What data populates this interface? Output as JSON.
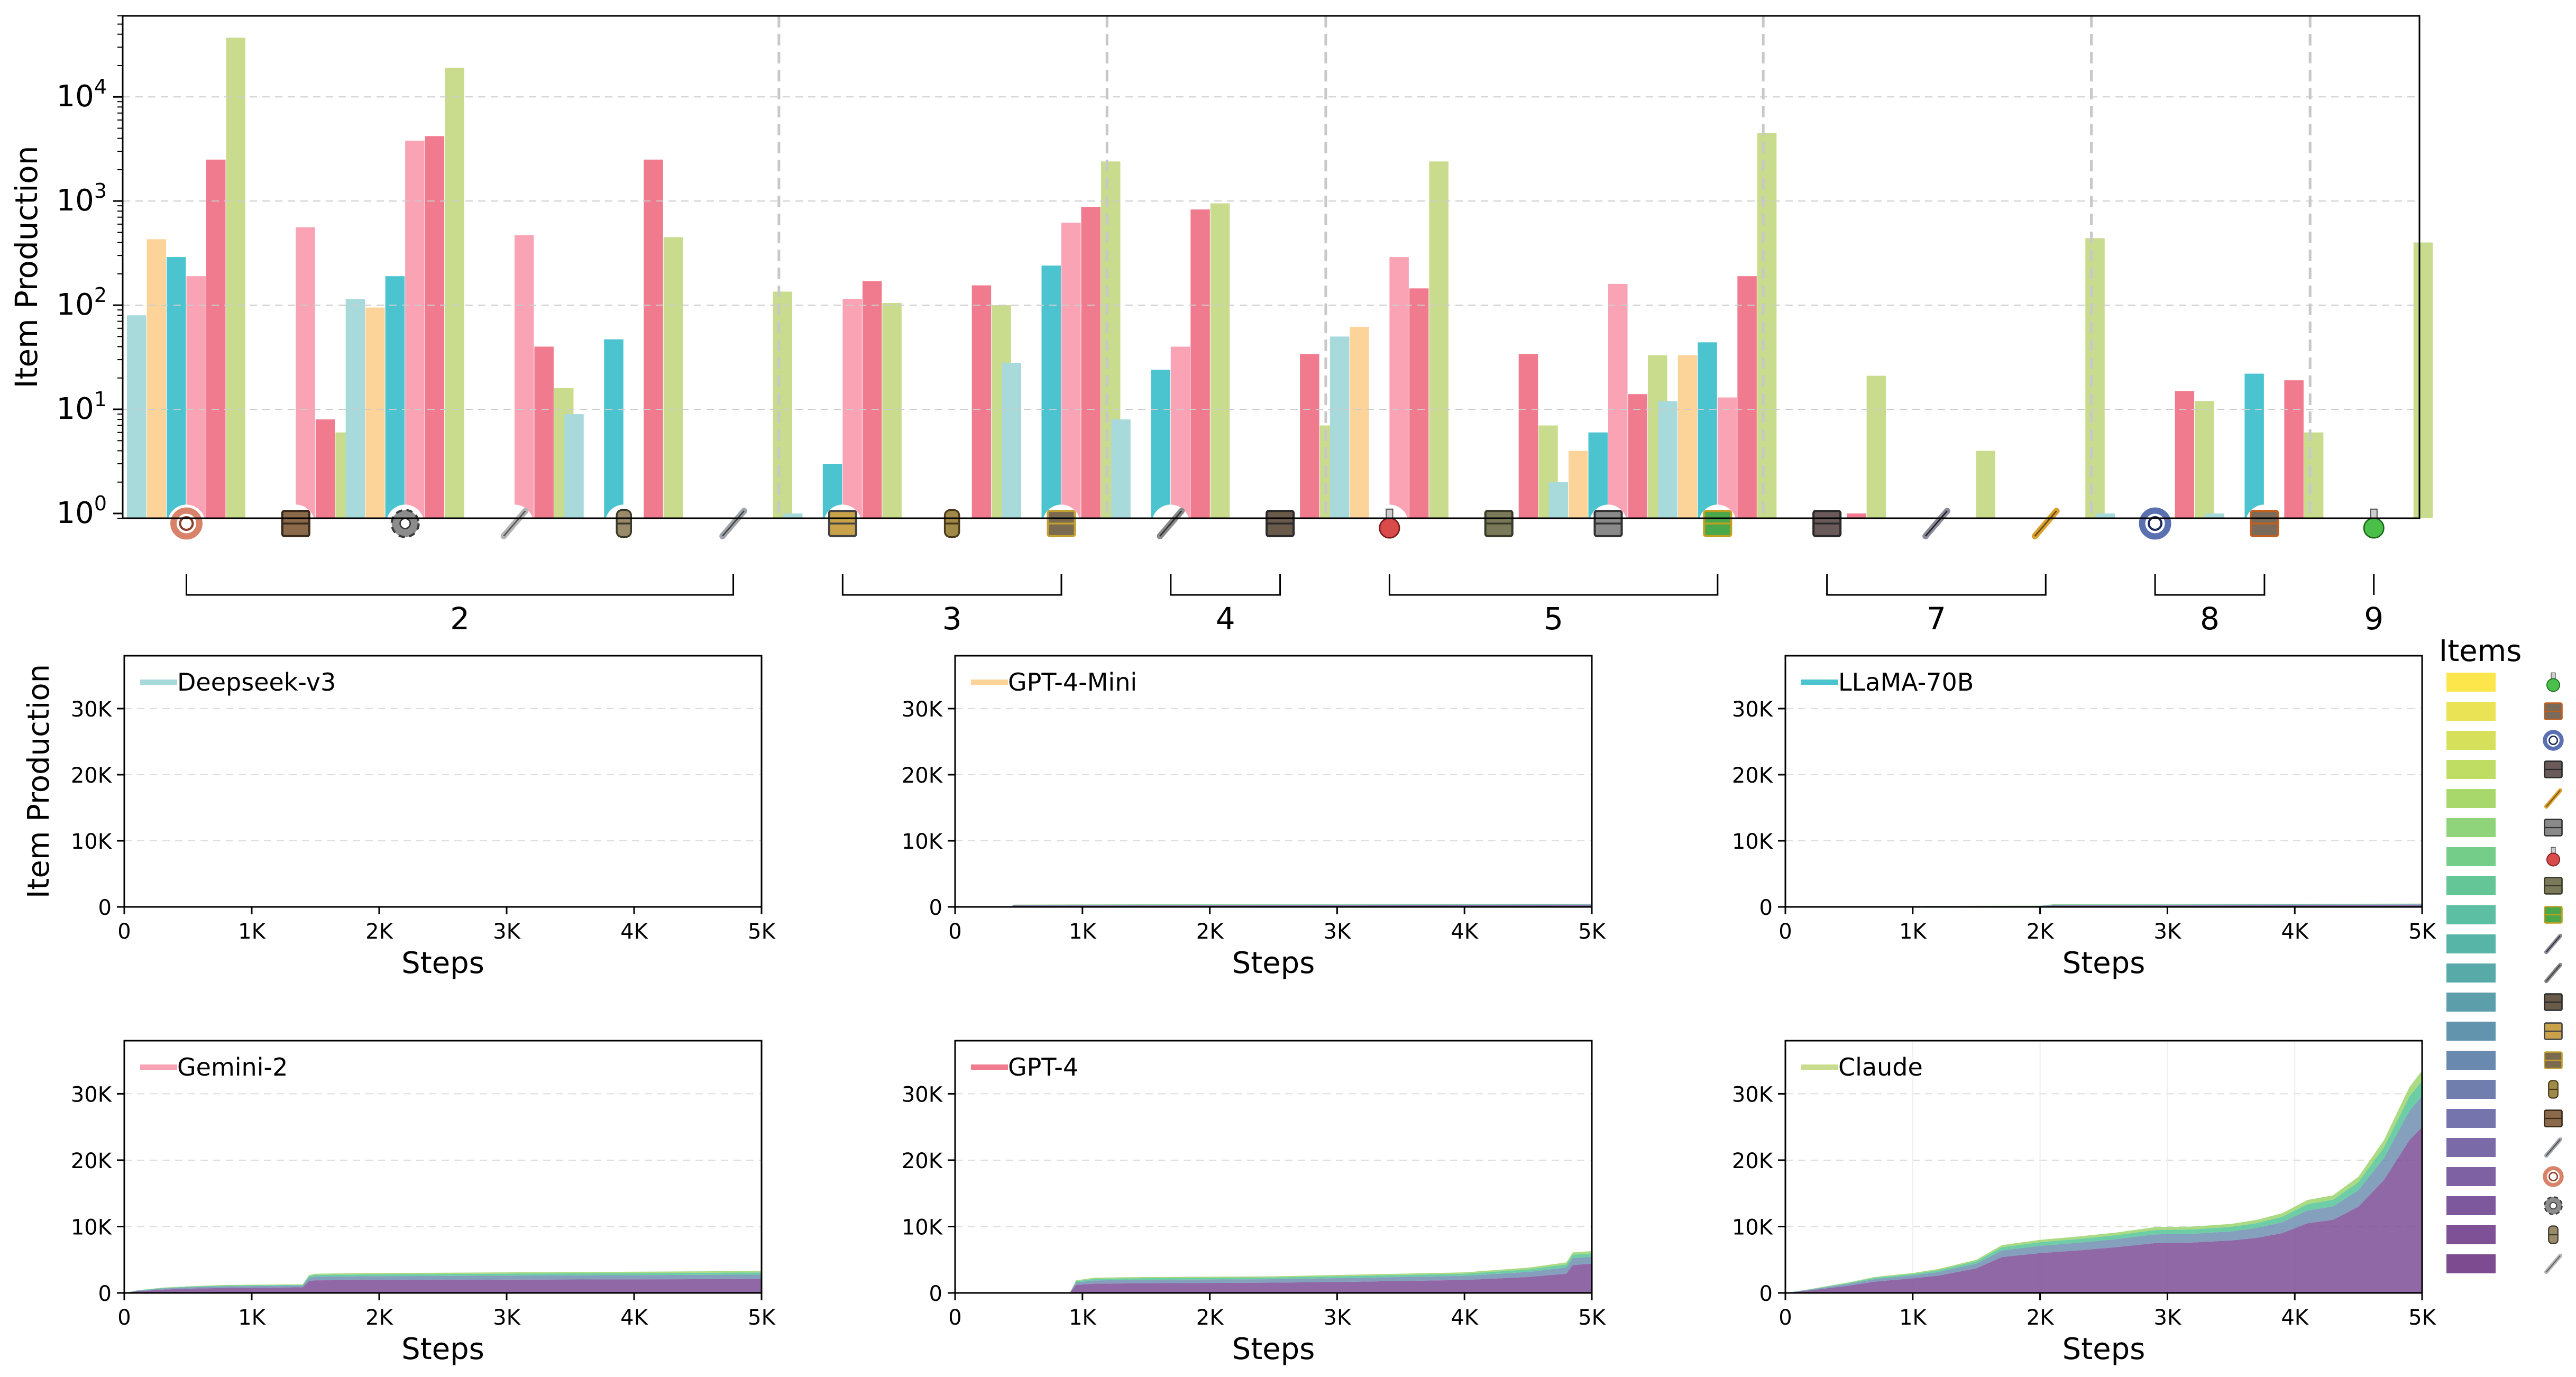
{
  "colors": {
    "Deepseek-v3": "#a8dadc",
    "GPT-4-Mini": "#fcd49a",
    "LLaMA-70B": "#4cc4d0",
    "Gemini-2": "#f9a3b5",
    "GPT-4": "#f07a8e",
    "Claude": "#c9db8d"
  },
  "chart_data": [
    {
      "type": "bar",
      "title": "",
      "ylabel": "Item Production",
      "yscale": "log",
      "ylim": [
        0.9,
        60000
      ],
      "ytick_labels": [
        "10^0",
        "10^1",
        "10^2",
        "10^3",
        "10^4"
      ],
      "categories": [
        "copper-cable",
        "wooden-chest",
        "iron-gear-wheel",
        "iron-stick",
        "pipe",
        "steel-plate",
        "transport-belt",
        "firearm-magazine",
        "electric-mining-drill",
        "pipe-to-ground",
        "burner-mining-drill",
        "automation-science-pack",
        "stone-furnace",
        "assembling-machine-1",
        "electronic-circuit",
        "lab",
        "inserter",
        "fast-inserter",
        "rocket-fuel",
        "gun-turret",
        "logistic-science-pack"
      ],
      "series": [
        {
          "name": "Deepseek-v3",
          "values": [
            80,
            null,
            115,
            null,
            9,
            null,
            1,
            null,
            28,
            8,
            null,
            50,
            null,
            2,
            12,
            null,
            null,
            null,
            1,
            1,
            null
          ]
        },
        {
          "name": "GPT-4-Mini",
          "values": [
            430,
            null,
            95,
            null,
            null,
            null,
            null,
            null,
            null,
            null,
            null,
            62,
            null,
            4,
            33,
            null,
            null,
            null,
            null,
            null,
            null
          ]
        },
        {
          "name": "LLaMA-70B",
          "values": [
            290,
            null,
            190,
            null,
            47,
            null,
            3,
            null,
            240,
            24,
            null,
            null,
            null,
            6,
            44,
            null,
            null,
            null,
            null,
            22,
            null
          ]
        },
        {
          "name": "Gemini-2",
          "values": [
            190,
            560,
            3800,
            470,
            null,
            null,
            115,
            null,
            620,
            40,
            null,
            290,
            null,
            160,
            13,
            null,
            null,
            null,
            null,
            null,
            null
          ]
        },
        {
          "name": "GPT-4",
          "values": [
            2500,
            8,
            4200,
            40,
            2500,
            null,
            170,
            155,
            880,
            830,
            34,
            145,
            34,
            14,
            190,
            1,
            null,
            null,
            15,
            19,
            null
          ]
        },
        {
          "name": "Claude",
          "values": [
            37000,
            6,
            19000,
            16,
            450,
            135,
            105,
            100,
            2400,
            950,
            7,
            2400,
            7,
            33,
            4500,
            21,
            4,
            440,
            12,
            6,
            400
          ]
        }
      ],
      "groups": [
        {
          "label": "2",
          "items": [
            "copper-cable",
            "wooden-chest",
            "iron-gear-wheel",
            "iron-stick",
            "pipe",
            "steel-plate"
          ]
        },
        {
          "label": "3",
          "items": [
            "transport-belt",
            "firearm-magazine",
            "electric-mining-drill"
          ]
        },
        {
          "label": "4",
          "items": [
            "pipe-to-ground",
            "burner-mining-drill"
          ]
        },
        {
          "label": "5",
          "items": [
            "automation-science-pack",
            "stone-furnace",
            "assembling-machine-1",
            "electronic-circuit"
          ]
        },
        {
          "label": "7",
          "items": [
            "lab",
            "inserter",
            "fast-inserter"
          ]
        },
        {
          "label": "8",
          "items": [
            "rocket-fuel",
            "gun-turret"
          ]
        },
        {
          "label": "9",
          "items": [
            "logistic-science-pack"
          ]
        }
      ]
    },
    {
      "type": "area",
      "panels": [
        {
          "model": "Deepseek-v3",
          "x": [
            0,
            1000,
            1300,
            2000,
            3000,
            4000,
            5000
          ],
          "total": [
            0,
            0,
            80,
            90,
            110,
            120,
            130
          ],
          "base": [
            0,
            0,
            40,
            45,
            55,
            60,
            65
          ]
        },
        {
          "model": "GPT-4-Mini",
          "x": [
            0,
            430,
            460,
            1000,
            2000,
            3000,
            4000,
            5000
          ],
          "total": [
            0,
            0,
            350,
            380,
            400,
            420,
            440,
            460
          ],
          "base": [
            0,
            0,
            200,
            210,
            220,
            230,
            240,
            250
          ]
        },
        {
          "model": "LLaMA-70B",
          "x": [
            0,
            1000,
            1100,
            2000,
            2100,
            3000,
            4000,
            5000
          ],
          "total": [
            0,
            0,
            150,
            200,
            400,
            430,
            460,
            500
          ],
          "base": [
            0,
            0,
            80,
            100,
            200,
            220,
            240,
            260
          ]
        },
        {
          "model": "Gemini-2",
          "x": [
            0,
            100,
            300,
            500,
            800,
            1100,
            1400,
            1450,
            1500,
            2000,
            3000,
            4000,
            5000
          ],
          "total": [
            0,
            400,
            800,
            1000,
            1200,
            1250,
            1300,
            2700,
            2900,
            3000,
            3100,
            3200,
            3300
          ],
          "base": [
            0,
            250,
            500,
            650,
            750,
            800,
            850,
            1800,
            1900,
            1950,
            2000,
            2050,
            2100
          ]
        },
        {
          "model": "GPT-4",
          "x": [
            0,
            900,
            950,
            1100,
            1500,
            2000,
            2500,
            3000,
            3500,
            4000,
            4500,
            4800,
            4850,
            5000
          ],
          "total": [
            0,
            0,
            1900,
            2300,
            2400,
            2450,
            2500,
            2700,
            2900,
            3100,
            3800,
            4600,
            6100,
            6300
          ],
          "base": [
            0,
            0,
            1200,
            1400,
            1450,
            1500,
            1550,
            1650,
            1800,
            1950,
            2400,
            2900,
            4200,
            4400
          ]
        },
        {
          "model": "Claude",
          "x": [
            0,
            200,
            500,
            700,
            1000,
            1200,
            1500,
            1700,
            2000,
            2300,
            2600,
            2900,
            3200,
            3500,
            3700,
            3900,
            4100,
            4300,
            4500,
            4700,
            4900,
            5000
          ],
          "total": [
            0,
            600,
            1600,
            2400,
            3000,
            3600,
            5000,
            7200,
            8000,
            8500,
            9100,
            9900,
            10000,
            10400,
            11000,
            12000,
            14000,
            14700,
            17500,
            23000,
            31000,
            33500
          ],
          "base": [
            0,
            400,
            1100,
            1700,
            2200,
            2600,
            3700,
            5400,
            6000,
            6400,
            6900,
            7500,
            7600,
            7900,
            8300,
            9000,
            10500,
            11000,
            13000,
            17000,
            23000,
            25000
          ]
        }
      ],
      "xlabel": "Steps",
      "ylabel": "Item Production",
      "xlim": [
        0,
        5000
      ],
      "ylim": [
        0,
        38000
      ],
      "xtick_labels": [
        "0",
        "1K",
        "2K",
        "3K",
        "4K",
        "5K"
      ],
      "ytick_labels": [
        "0",
        "10K",
        "20K",
        "30K"
      ],
      "stack_colors": [
        "#7b4e95",
        "#6f8fb0",
        "#53c496",
        "#9bd46c"
      ]
    }
  ],
  "legend": {
    "title": "Items",
    "swatches": [
      "#fde64b",
      "#e9e355",
      "#d6e05a",
      "#c0dd63",
      "#a8d86c",
      "#8fd37a",
      "#74cd88",
      "#64c697",
      "#5cbea3",
      "#56b5a6",
      "#58aaa9",
      "#5c9fab",
      "#6394ad",
      "#6a89ae",
      "#707eae",
      "#7574ac",
      "#7a6aa8",
      "#7d61a2",
      "#7e589c",
      "#7e5096",
      "#7d4b90"
    ],
    "icons": [
      "logistic-science-pack",
      "gun-turret",
      "rocket-fuel",
      "lab",
      "fast-inserter",
      "assembling-machine-1",
      "automation-science-pack",
      "stone-furnace",
      "electronic-circuit",
      "inserter",
      "pipe-to-ground",
      "burner-mining-drill",
      "transport-belt",
      "electric-mining-drill",
      "firearm-magazine",
      "wooden-chest",
      "steel-plate",
      "copper-cable",
      "iron-gear-wheel",
      "pipe",
      "iron-stick"
    ]
  }
}
